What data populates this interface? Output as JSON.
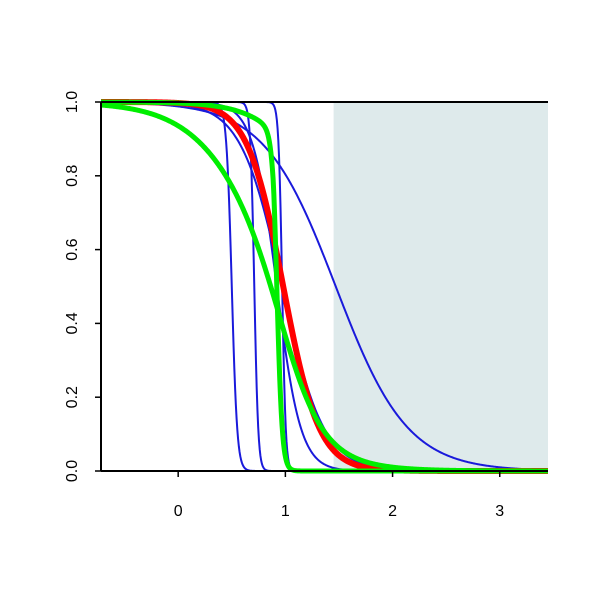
{
  "chart_data": {
    "type": "line",
    "title": "",
    "xlabel": "",
    "ylabel": "",
    "xlim": [
      -0.72,
      3.45
    ],
    "ylim": [
      0.0,
      1.0
    ],
    "x_ticks": [
      0,
      1,
      2,
      3
    ],
    "x_tick_labels": [
      "0",
      "1",
      "2",
      "3"
    ],
    "y_ticks": [
      0.0,
      0.2,
      0.4,
      0.6,
      0.8,
      1.0
    ],
    "y_tick_labels": [
      "0.0",
      "0.2",
      "0.4",
      "0.6",
      "0.8",
      "1.0"
    ],
    "grid": false,
    "shaded_region": {
      "x_start": 1.45,
      "x_end": 3.45,
      "color": "#deeaeb"
    },
    "series": [
      {
        "color": "#1a1adb",
        "width": 2,
        "midpoint": 0.5,
        "steepness": 40,
        "shape": "logistic"
      },
      {
        "color": "#1a1adb",
        "width": 2,
        "midpoint": 0.71,
        "steepness": 55,
        "shape": "logistic"
      },
      {
        "color": "#1a1adb",
        "width": 2,
        "midpoint": 0.92,
        "steepness": 9,
        "shape": "logistic"
      },
      {
        "color": "#1a1adb",
        "width": 2,
        "midpoint": 0.97,
        "steepness": 5.2,
        "shape": "logistic"
      },
      {
        "color": "#1a1adb",
        "width": 2,
        "midpoint": 1.47,
        "steepness": 3.0,
        "shape": "logistic"
      },
      {
        "color": "#1a1adb",
        "width": 2,
        "midpoint": 0.97,
        "steepness": 60,
        "shape": "logistic"
      },
      {
        "color": "#ff0000",
        "width": 6,
        "midpoint": 0.98,
        "steepness": 6.0,
        "shape": "logistic"
      },
      {
        "color": "#00ee00",
        "width": 5,
        "midpoint": 0.98,
        "steepness": 5.5,
        "shape": "logistic",
        "early_mid": 0.65,
        "early_steep": 3.0
      },
      {
        "color": "#00ee00",
        "width": 5,
        "midpoint": 0.92,
        "steepness": 40,
        "shape": "logistic",
        "plateau": 0.35,
        "tail_mid": 1.2,
        "tail_steep": 4.0
      }
    ]
  }
}
